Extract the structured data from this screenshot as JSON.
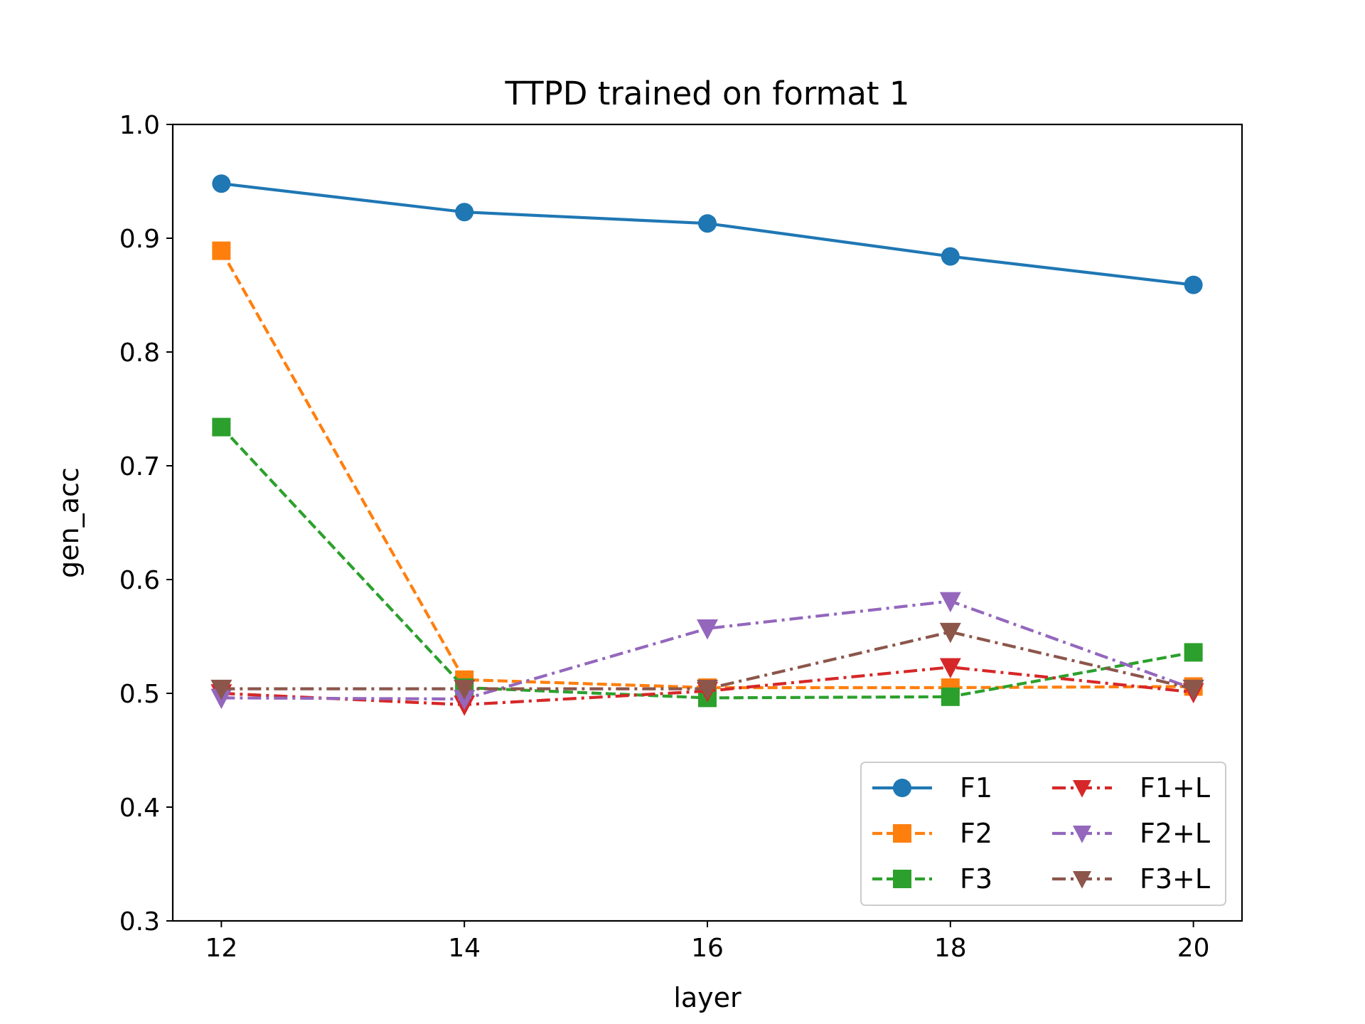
{
  "chart_data": {
    "type": "line",
    "title": "TTPD trained on format 1",
    "xlabel": "layer",
    "ylabel": "gen_acc",
    "x": [
      12,
      14,
      16,
      18,
      20
    ],
    "xticks": [
      "12",
      "14",
      "16",
      "18",
      "20"
    ],
    "yticks": [
      "0.3",
      "0.4",
      "0.5",
      "0.6",
      "0.7",
      "0.8",
      "0.9",
      "1.0"
    ],
    "xlim": [
      11.6,
      20.4
    ],
    "ylim": [
      0.3,
      1.0
    ],
    "grid": false,
    "legend_position": "lower right",
    "series": [
      {
        "name": "F1",
        "values": [
          0.948,
          0.923,
          0.913,
          0.884,
          0.859
        ],
        "color": "#1f77b4",
        "linestyle": "solid",
        "marker": "circle"
      },
      {
        "name": "F2",
        "values": [
          0.889,
          0.512,
          0.505,
          0.505,
          0.506
        ],
        "color": "#ff7f0e",
        "linestyle": "dashed",
        "marker": "square"
      },
      {
        "name": "F3",
        "values": [
          0.734,
          0.505,
          0.496,
          0.497,
          0.536
        ],
        "color": "#2ca02c",
        "linestyle": "dashed",
        "marker": "square"
      },
      {
        "name": "F1+L",
        "values": [
          0.5,
          0.49,
          0.502,
          0.523,
          0.501
        ],
        "color": "#d62728",
        "linestyle": "dashdot",
        "marker": "triangle-down"
      },
      {
        "name": "F2+L",
        "values": [
          0.496,
          0.495,
          0.557,
          0.581,
          0.504
        ],
        "color": "#9467bd",
        "linestyle": "dashdot",
        "marker": "triangle-down"
      },
      {
        "name": "F3+L",
        "values": [
          0.504,
          0.504,
          0.504,
          0.554,
          0.504
        ],
        "color": "#8c564b",
        "linestyle": "dashdot",
        "marker": "triangle-down"
      }
    ]
  }
}
